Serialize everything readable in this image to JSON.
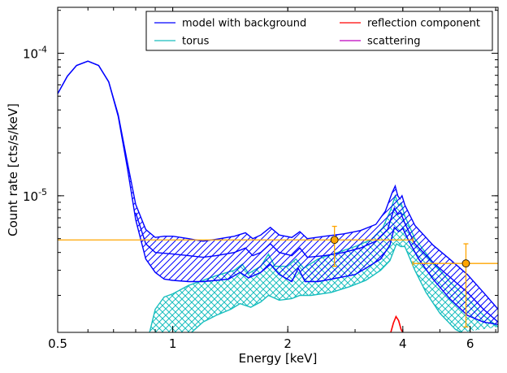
{
  "chart_data": {
    "type": "line",
    "xlabel": "Energy [keV]",
    "ylabel": "Count rate [cts/s/keV]",
    "x_scale": "log",
    "y_scale": "log",
    "xlim": [
      0.5,
      7.1
    ],
    "ylim": [
      1.1e-06,
      0.00021
    ],
    "x_ticks": [
      {
        "value": 0.5,
        "label": "0.5"
      },
      {
        "value": 1,
        "label": "1"
      },
      {
        "value": 2,
        "label": "2"
      },
      {
        "value": 4,
        "label": "4"
      },
      {
        "value": 6,
        "label": "6"
      }
    ],
    "y_ticks": [
      {
        "value": 1e-05,
        "base": "10",
        "exp": "-5"
      },
      {
        "value": 0.0001,
        "base": "10",
        "exp": "-4"
      }
    ],
    "grid": false,
    "legend": {
      "placement": "top-right",
      "entries": [
        {
          "label": "model with background",
          "color": "#0000ff"
        },
        {
          "label": "reflection component",
          "color": "#ff0000"
        },
        {
          "label": "torus",
          "color": "#17bebe"
        },
        {
          "label": "scattering",
          "color": "#bf00bf"
        }
      ]
    },
    "series": [
      {
        "name": "model with background",
        "color": "#0000ff",
        "band": {
          "upper": [
            [
              0.5,
              5.2e-05
            ],
            [
              0.53,
              6.9e-05
            ],
            [
              0.56,
              8.2e-05
            ],
            [
              0.6,
              8.8e-05
            ],
            [
              0.64,
              8.2e-05
            ],
            [
              0.68,
              6.3e-05
            ],
            [
              0.72,
              3.7e-05
            ],
            [
              0.76,
              1.75e-05
            ],
            [
              0.8,
              8.7e-06
            ],
            [
              0.85,
              5.8e-06
            ],
            [
              0.9,
              5.1e-06
            ],
            [
              0.95,
              5.2e-06
            ],
            [
              1.0,
              5.2e-06
            ],
            [
              1.05,
              5.1e-06
            ],
            [
              1.1,
              5e-06
            ],
            [
              1.2,
              4.8e-06
            ],
            [
              1.3,
              4.95e-06
            ],
            [
              1.45,
              5.2e-06
            ],
            [
              1.55,
              5.5e-06
            ],
            [
              1.62,
              5e-06
            ],
            [
              1.7,
              5.3e-06
            ],
            [
              1.8,
              6e-06
            ],
            [
              1.9,
              5.3e-06
            ],
            [
              2.05,
              5.1e-06
            ],
            [
              2.15,
              5.6e-06
            ],
            [
              2.25,
              5e-06
            ],
            [
              2.5,
              5.2e-06
            ],
            [
              2.8,
              5.4e-06
            ],
            [
              3.1,
              5.7e-06
            ],
            [
              3.4,
              6.3e-06
            ],
            [
              3.6,
              7.8e-06
            ],
            [
              3.75,
              1.05e-05
            ],
            [
              3.82,
              1.17e-05
            ],
            [
              3.88,
              1e-05
            ],
            [
              3.93,
              9.5e-06
            ],
            [
              3.98,
              1e-05
            ],
            [
              4.05,
              8.6e-06
            ],
            [
              4.3,
              6.2e-06
            ],
            [
              4.8,
              4.5e-06
            ],
            [
              5.3,
              3.6e-06
            ],
            [
              5.9,
              2.8e-06
            ],
            [
              6.5,
              2.1e-06
            ],
            [
              7.1,
              1.6e-06
            ]
          ],
          "lower": [
            [
              0.5,
              5.2e-05
            ],
            [
              0.53,
              6.9e-05
            ],
            [
              0.56,
              8.2e-05
            ],
            [
              0.6,
              8.8e-05
            ],
            [
              0.64,
              8.2e-05
            ],
            [
              0.68,
              6.3e-05
            ],
            [
              0.72,
              3.6e-05
            ],
            [
              0.76,
              1.6e-05
            ],
            [
              0.8,
              6.8e-06
            ],
            [
              0.85,
              3.6e-06
            ],
            [
              0.9,
              2.9e-06
            ],
            [
              0.95,
              2.6e-06
            ],
            [
              1.0,
              2.55e-06
            ],
            [
              1.1,
              2.5e-06
            ],
            [
              1.2,
              2.5e-06
            ],
            [
              1.3,
              2.55e-06
            ],
            [
              1.4,
              2.6e-06
            ],
            [
              1.5,
              2.9e-06
            ],
            [
              1.58,
              2.65e-06
            ],
            [
              1.7,
              2.9e-06
            ],
            [
              1.8,
              3.3e-06
            ],
            [
              1.9,
              2.8e-06
            ],
            [
              2.05,
              2.5e-06
            ],
            [
              2.13,
              3.1e-06
            ],
            [
              2.22,
              2.5e-06
            ],
            [
              2.4,
              2.5e-06
            ],
            [
              2.6,
              2.6e-06
            ],
            [
              2.8,
              2.7e-06
            ],
            [
              3.0,
              2.8e-06
            ],
            [
              3.2,
              3.1e-06
            ],
            [
              3.5,
              3.6e-06
            ],
            [
              3.7,
              4.5e-06
            ],
            [
              3.8,
              6e-06
            ],
            [
              3.9,
              5.6e-06
            ],
            [
              4.0,
              5.9e-06
            ],
            [
              4.15,
              4.8e-06
            ],
            [
              4.4,
              3.6e-06
            ],
            [
              4.8,
              2.6e-06
            ],
            [
              5.3,
              1.9e-06
            ],
            [
              5.9,
              1.45e-06
            ],
            [
              6.5,
              1.3e-06
            ],
            [
              7.1,
              1.25e-06
            ]
          ],
          "middle": [
            [
              0.8,
              7.6e-06
            ],
            [
              0.85,
              4.6e-06
            ],
            [
              0.9,
              4e-06
            ],
            [
              1.0,
              3.9e-06
            ],
            [
              1.1,
              3.8e-06
            ],
            [
              1.2,
              3.7e-06
            ],
            [
              1.3,
              3.8e-06
            ],
            [
              1.45,
              4e-06
            ],
            [
              1.55,
              4.3e-06
            ],
            [
              1.62,
              3.8e-06
            ],
            [
              1.7,
              4e-06
            ],
            [
              1.8,
              4.6e-06
            ],
            [
              1.9,
              4e-06
            ],
            [
              2.05,
              3.8e-06
            ],
            [
              2.15,
              4.3e-06
            ],
            [
              2.25,
              3.7e-06
            ],
            [
              2.5,
              3.8e-06
            ],
            [
              2.8,
              4e-06
            ],
            [
              3.1,
              4.3e-06
            ],
            [
              3.4,
              4.8e-06
            ],
            [
              3.65,
              5.8e-06
            ],
            [
              3.8,
              8.2e-06
            ],
            [
              3.88,
              7.4e-06
            ],
            [
              3.95,
              7.6e-06
            ],
            [
              4.05,
              6.4e-06
            ],
            [
              4.3,
              4.6e-06
            ],
            [
              4.8,
              3.4e-06
            ],
            [
              5.3,
              2.7e-06
            ],
            [
              5.9,
              2.1e-06
            ],
            [
              6.5,
              1.6e-06
            ],
            [
              7.1,
              1.3e-06
            ]
          ]
        }
      },
      {
        "name": "torus",
        "color": "#17bebe",
        "band": {
          "upper": [
            [
              0.87,
              1.1e-06
            ],
            [
              0.9,
              1.6e-06
            ],
            [
              0.95,
              1.95e-06
            ],
            [
              1.0,
              2.05e-06
            ],
            [
              1.1,
              2.35e-06
            ],
            [
              1.2,
              2.55e-06
            ],
            [
              1.3,
              2.75e-06
            ],
            [
              1.45,
              3e-06
            ],
            [
              1.52,
              3.3e-06
            ],
            [
              1.58,
              2.85e-06
            ],
            [
              1.7,
              3.2e-06
            ],
            [
              1.78,
              3.9e-06
            ],
            [
              1.85,
              3.2e-06
            ],
            [
              2.0,
              3.2e-06
            ],
            [
              2.1,
              3.6e-06
            ],
            [
              2.2,
              3.1e-06
            ],
            [
              2.4,
              3.6e-06
            ],
            [
              2.7,
              4e-06
            ],
            [
              3.0,
              4.4e-06
            ],
            [
              3.3,
              4.9e-06
            ],
            [
              3.55,
              6e-06
            ],
            [
              3.72,
              8e-06
            ],
            [
              3.82,
              1e-05
            ],
            [
              3.9,
              8.6e-06
            ],
            [
              3.96,
              8.9e-06
            ],
            [
              4.05,
              7.2e-06
            ],
            [
              4.3,
              5e-06
            ],
            [
              4.8,
              3.4e-06
            ],
            [
              5.3,
              2.5e-06
            ],
            [
              5.9,
              1.9e-06
            ],
            [
              6.5,
              1.45e-06
            ],
            [
              7.1,
              1.2e-06
            ]
          ],
          "lower": [
            [
              1.12,
              1.1e-06
            ],
            [
              1.2,
              1.3e-06
            ],
            [
              1.3,
              1.45e-06
            ],
            [
              1.42,
              1.6e-06
            ],
            [
              1.5,
              1.75e-06
            ],
            [
              1.6,
              1.65e-06
            ],
            [
              1.7,
              1.8e-06
            ],
            [
              1.78,
              2e-06
            ],
            [
              1.9,
              1.85e-06
            ],
            [
              2.05,
              1.9e-06
            ],
            [
              2.15,
              2e-06
            ],
            [
              2.3,
              2e-06
            ],
            [
              2.6,
              2.1e-06
            ],
            [
              2.9,
              2.3e-06
            ],
            [
              3.2,
              2.55e-06
            ],
            [
              3.5,
              3e-06
            ],
            [
              3.7,
              3.5e-06
            ],
            [
              3.85,
              4.6e-06
            ],
            [
              3.95,
              4.4e-06
            ],
            [
              4.05,
              4.4e-06
            ],
            [
              4.3,
              3e-06
            ],
            [
              4.6,
              2.1e-06
            ],
            [
              5.0,
              1.5e-06
            ],
            [
              5.5,
              1.15e-06
            ],
            [
              5.7,
              1.1e-06
            ]
          ]
        }
      },
      {
        "name": "reflection component",
        "color": "#ff0000",
        "values": [
          [
            3.72,
            1.1e-06
          ],
          [
            3.78,
            1.28e-06
          ],
          [
            3.84,
            1.42e-06
          ],
          [
            3.9,
            1.33e-06
          ],
          [
            3.96,
            1.15e-06
          ],
          [
            4.0,
            1.1e-06
          ]
        ]
      },
      {
        "name": "scattering",
        "color": "#bf00bf",
        "values": []
      }
    ],
    "data_points": {
      "color": "#ffa500",
      "points": [
        {
          "x": 2.65,
          "y": 4.9e-06,
          "xerr": [
            0.5,
            4.25
          ],
          "yerr": [
            3.2e-06,
            6.1e-06
          ]
        },
        {
          "x": 5.85,
          "y": 3.35e-06,
          "xerr": [
            4.25,
            7.1
          ],
          "yerr": [
            1.2e-06,
            4.6e-06
          ]
        }
      ]
    }
  }
}
